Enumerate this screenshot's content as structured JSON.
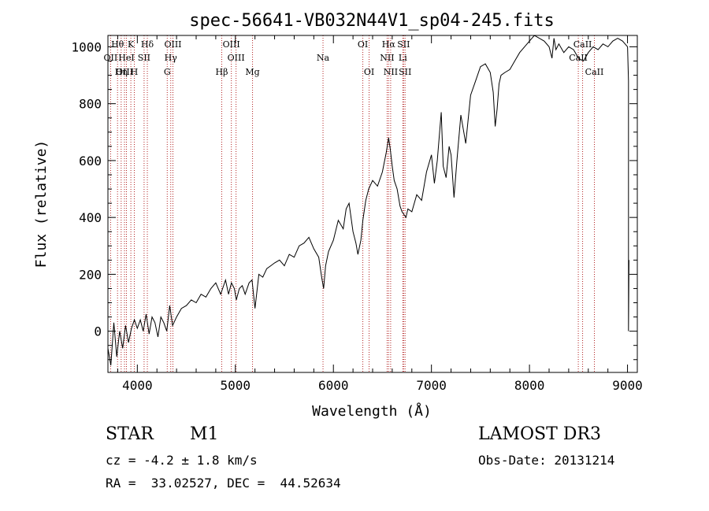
{
  "chart_data": {
    "type": "line",
    "title": "spec-56641-VB032N44V1_sp04-245.fits",
    "xlabel": "Wavelength (Å)",
    "ylabel": "Flux (relative)",
    "xlim": [
      3700,
      9100
    ],
    "ylim": [
      -145,
      1040
    ],
    "x_ticks": [
      4000,
      5000,
      6000,
      7000,
      8000,
      9000
    ],
    "y_ticks": [
      0,
      200,
      400,
      600,
      800,
      1000
    ],
    "x_tick_labels": [
      "4000",
      "5000",
      "6000",
      "7000",
      "8000",
      "9000"
    ],
    "y_tick_labels": [
      "0",
      "200",
      "400",
      "600",
      "800",
      "1000"
    ],
    "series": [
      {
        "name": "flux",
        "x": [
          3700,
          3730,
          3760,
          3790,
          3820,
          3850,
          3880,
          3910,
          3940,
          3970,
          4000,
          4030,
          4060,
          4090,
          4120,
          4150,
          4180,
          4210,
          4240,
          4270,
          4300,
          4330,
          4360,
          4400,
          4450,
          4500,
          4550,
          4600,
          4650,
          4700,
          4750,
          4800,
          4850,
          4870,
          4900,
          4930,
          4960,
          4990,
          5010,
          5040,
          5070,
          5100,
          5140,
          5170,
          5200,
          5240,
          5280,
          5320,
          5360,
          5400,
          5450,
          5500,
          5550,
          5600,
          5650,
          5700,
          5750,
          5800,
          5850,
          5880,
          5900,
          5920,
          5950,
          6000,
          6050,
          6100,
          6130,
          6160,
          6200,
          6230,
          6250,
          6280,
          6300,
          6330,
          6360,
          6400,
          6450,
          6500,
          6540,
          6563,
          6580,
          6600,
          6620,
          6650,
          6680,
          6700,
          6720,
          6740,
          6760,
          6800,
          6850,
          6900,
          6950,
          7000,
          7030,
          7060,
          7100,
          7120,
          7150,
          7180,
          7200,
          7230,
          7260,
          7300,
          7350,
          7400,
          7450,
          7500,
          7550,
          7600,
          7630,
          7650,
          7670,
          7690,
          7710,
          7750,
          7800,
          7850,
          7900,
          7950,
          8000,
          8050,
          8100,
          8150,
          8200,
          8230,
          8250,
          8270,
          8300,
          8350,
          8400,
          8450,
          8500,
          8550,
          8600,
          8650,
          8700,
          8750,
          8800,
          8850,
          8900,
          8950,
          9000,
          9010,
          9010,
          9015
        ],
        "y": [
          -60,
          -120,
          30,
          -90,
          0,
          -60,
          20,
          -40,
          10,
          40,
          10,
          40,
          0,
          60,
          -10,
          50,
          30,
          -20,
          50,
          30,
          0,
          90,
          20,
          50,
          80,
          90,
          110,
          100,
          130,
          120,
          150,
          170,
          130,
          150,
          180,
          130,
          170,
          150,
          110,
          150,
          160,
          130,
          170,
          180,
          80,
          200,
          190,
          220,
          230,
          240,
          250,
          230,
          270,
          260,
          300,
          310,
          330,
          290,
          260,
          190,
          150,
          230,
          280,
          320,
          390,
          360,
          430,
          450,
          350,
          310,
          270,
          320,
          390,
          460,
          500,
          530,
          510,
          560,
          630,
          680,
          640,
          580,
          530,
          500,
          440,
          420,
          410,
          400,
          430,
          420,
          480,
          460,
          560,
          620,
          520,
          600,
          770,
          580,
          540,
          650,
          620,
          470,
          600,
          760,
          660,
          830,
          880,
          930,
          940,
          910,
          840,
          720,
          780,
          870,
          900,
          910,
          920,
          950,
          980,
          1000,
          1020,
          1040,
          1030,
          1020,
          1000,
          960,
          1030,
          990,
          1010,
          980,
          1000,
          990,
          960,
          950,
          980,
          1000,
          990,
          1010,
          1000,
          1020,
          1030,
          1020,
          1000,
          880,
          0,
          250
        ]
      }
    ],
    "line_labels": [
      {
        "label": "Hθ",
        "x": 3798,
        "row": 0
      },
      {
        "label": "OII",
        "x": 3727,
        "row": 1
      },
      {
        "label": "OIII",
        "x": 3869,
        "row": 2
      },
      {
        "label": "K",
        "x": 3934,
        "row": 0
      },
      {
        "label": "HeI",
        "x": 3889,
        "row": 1
      },
      {
        "label": "Hη",
        "x": 3835,
        "row": 2
      },
      {
        "label": "Hδ",
        "x": 4102,
        "row": 0
      },
      {
        "label": "SII",
        "x": 4069,
        "row": 1
      },
      {
        "label": "H",
        "x": 3969,
        "row": 2
      },
      {
        "label": "OIII",
        "x": 4363,
        "row": 0
      },
      {
        "label": "Hγ",
        "x": 4341,
        "row": 1
      },
      {
        "label": "G",
        "x": 4305,
        "row": 2
      },
      {
        "label": "OIII",
        "x": 4959,
        "row": 0
      },
      {
        "label": "OIII",
        "x": 5007,
        "row": 1
      },
      {
        "label": "Hβ",
        "x": 4861,
        "row": 2
      },
      {
        "label": "Mg",
        "x": 5175,
        "row": 2
      },
      {
        "label": "Na",
        "x": 5894,
        "row": 1
      },
      {
        "label": "OI",
        "x": 6300,
        "row": 0
      },
      {
        "label": "OI",
        "x": 6364,
        "row": 2
      },
      {
        "label": "Hα",
        "x": 6563,
        "row": 0
      },
      {
        "label": "SII",
        "x": 6716,
        "row": 0
      },
      {
        "label": "NII",
        "x": 6548,
        "row": 1
      },
      {
        "label": "Li",
        "x": 6708,
        "row": 1
      },
      {
        "label": "NII",
        "x": 6584,
        "row": 2
      },
      {
        "label": "SII",
        "x": 6731,
        "row": 2
      },
      {
        "label": "CaII",
        "x": 8542,
        "row": 0
      },
      {
        "label": "CaII",
        "x": 8498,
        "row": 1
      },
      {
        "label": "CaII",
        "x": 8662,
        "row": 2
      }
    ],
    "line_positions": [
      3727,
      3798,
      3835,
      3869,
      3889,
      3934,
      3969,
      4069,
      4102,
      4305,
      4341,
      4363,
      4861,
      4959,
      5007,
      5175,
      5894,
      6300,
      6364,
      6548,
      6563,
      6584,
      6708,
      6716,
      6731,
      8498,
      8542,
      8662
    ]
  },
  "info": {
    "object_class": "STAR",
    "subclass": "M1",
    "survey": "LAMOST DR3",
    "cz": "cz = -4.2 ± 1.8 km/s",
    "obs_date": "Obs-Date: 20131214",
    "coords": "RA =  33.02527, DEC =  44.52634"
  },
  "colors": {
    "spectrum": "#000000",
    "emission_lines": "#b22222",
    "axis": "#000000",
    "background": "#ffffff"
  }
}
